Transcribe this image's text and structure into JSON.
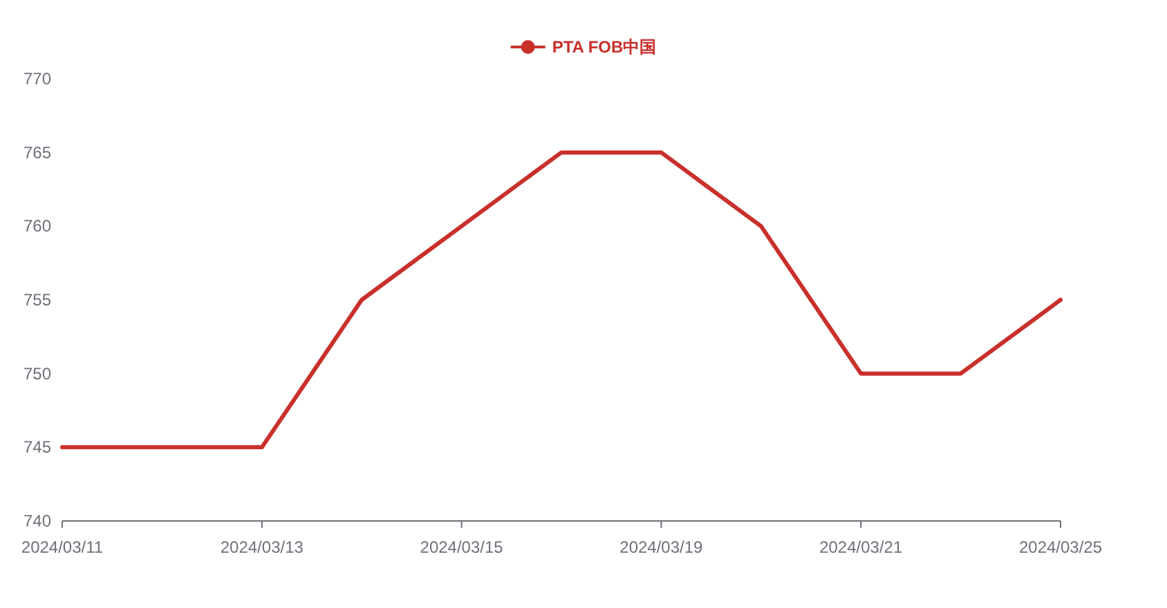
{
  "chart_data": {
    "type": "line",
    "categories": [
      "2024/03/11",
      null,
      "2024/03/13",
      null,
      "2024/03/15",
      null,
      "2024/03/19",
      null,
      "2024/03/21",
      null,
      "2024/03/25"
    ],
    "series": [
      {
        "name": "PTA FOB中国",
        "color": "#c9302c",
        "values": [
          745,
          745,
          745,
          755,
          760,
          765,
          765,
          760,
          750,
          750,
          755
        ]
      }
    ],
    "ylim": [
      740,
      770
    ],
    "yticks": [
      740,
      745,
      750,
      755,
      760,
      765,
      770
    ],
    "grid": false,
    "legend": "top"
  }
}
